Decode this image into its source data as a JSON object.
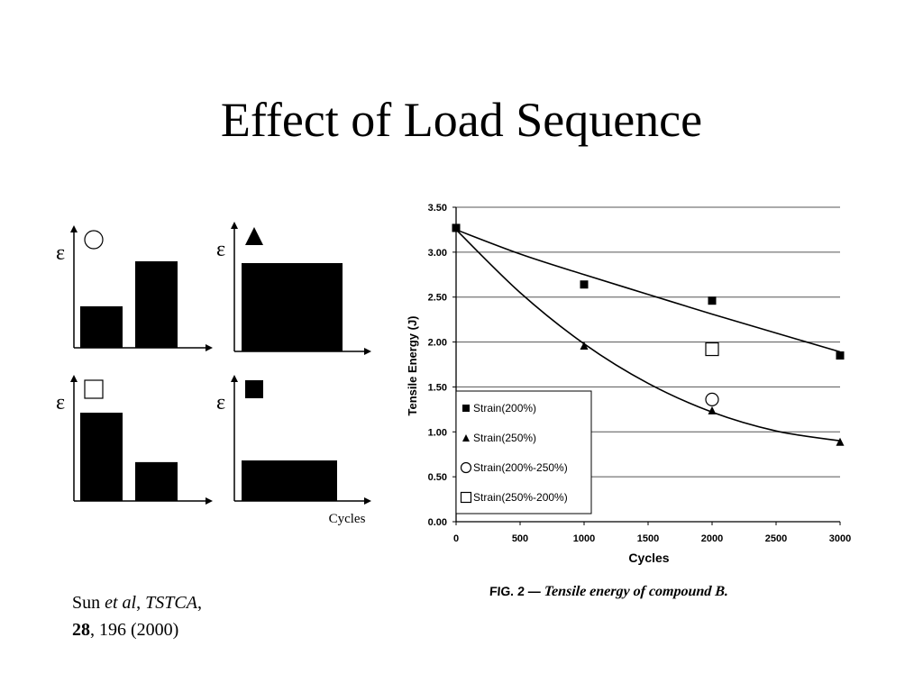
{
  "title": "Effect of Load Sequence",
  "schematic": {
    "y_symbol": "ε",
    "x_label": "Cycles",
    "panels": [
      {
        "marker": "circle-open",
        "bars": [
          0.48,
          1.0
        ]
      },
      {
        "marker": "triangle-filled",
        "bars": [
          1.0
        ]
      },
      {
        "marker": "square-open",
        "bars": [
          1.0,
          0.44
        ]
      },
      {
        "marker": "square-filled",
        "bars": [
          1.0
        ]
      }
    ]
  },
  "citation": {
    "author": "Sun ",
    "etal": "et al",
    "sep1": ", ",
    "journal": "TSTCA",
    "sep2": ",",
    "volume": "28",
    "rest": ", 196 (2000)"
  },
  "figure_caption": {
    "prefix": "FIG. 2 — ",
    "text": "Tensile energy of compound B."
  },
  "chart_data": {
    "type": "scatter",
    "title": "",
    "xlabel": "Cycles",
    "ylabel": "Tensile Energy (J)",
    "xlim": [
      0,
      3000
    ],
    "ylim": [
      0.0,
      3.5
    ],
    "x_ticks": [
      "0",
      "500",
      "1000",
      "1500",
      "2000",
      "2500",
      "3000"
    ],
    "y_ticks": [
      "0.00",
      "0.50",
      "1.00",
      "1.50",
      "2.00",
      "2.50",
      "3.00",
      "3.50"
    ],
    "grid": "horizontal",
    "legend_position": "bottom-left",
    "series": [
      {
        "name": "Strain(200%)",
        "marker": "square-filled",
        "x": [
          0,
          1000,
          2000,
          3000
        ],
        "y": [
          3.27,
          2.64,
          2.46,
          1.85
        ],
        "fit": [
          [
            0,
            3.25
          ],
          [
            500,
            2.98
          ],
          [
            1000,
            2.75
          ],
          [
            1500,
            2.53
          ],
          [
            2000,
            2.31
          ],
          [
            2500,
            2.1
          ],
          [
            3000,
            1.89
          ]
        ]
      },
      {
        "name": "Strain(250%)",
        "marker": "triangle-filled",
        "x": [
          0,
          1000,
          2000,
          3000
        ],
        "y": [
          3.27,
          1.96,
          1.24,
          0.89
        ],
        "fit": [
          [
            0,
            3.25
          ],
          [
            500,
            2.55
          ],
          [
            1000,
            1.98
          ],
          [
            1500,
            1.54
          ],
          [
            2000,
            1.22
          ],
          [
            2500,
            1.01
          ],
          [
            3000,
            0.9
          ]
        ]
      },
      {
        "name": "Strain(200%-250%)",
        "marker": "circle-open",
        "x": [
          2000
        ],
        "y": [
          1.36
        ]
      },
      {
        "name": "Strain(250%-200%)",
        "marker": "square-open",
        "x": [
          2000
        ],
        "y": [
          1.92
        ]
      }
    ]
  }
}
